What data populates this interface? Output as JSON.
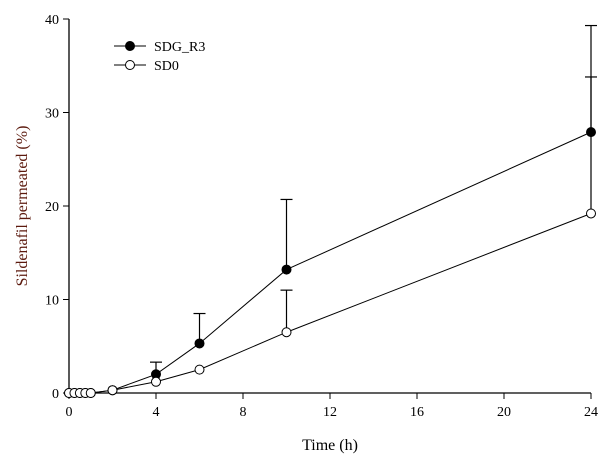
{
  "chart_data": {
    "type": "line",
    "title": "",
    "xlabel": "Time (h)",
    "ylabel": "Sildenafil permeated (%)",
    "xlim": [
      0,
      24
    ],
    "ylim": [
      0,
      40
    ],
    "xticks": [
      0,
      4,
      8,
      12,
      16,
      20,
      24
    ],
    "yticks": [
      0,
      10,
      20,
      30,
      40
    ],
    "grid": false,
    "legend_position": "top-left",
    "colors": {
      "axis": "#000000",
      "ylabel": "#5c1a0e"
    },
    "series": [
      {
        "name": "SDG_R3",
        "marker": "filled-circle",
        "x": [
          0,
          0.25,
          0.5,
          0.75,
          1,
          2,
          4,
          6,
          10,
          24
        ],
        "y": [
          0,
          0,
          0,
          0,
          0,
          0.3,
          2.0,
          5.3,
          13.2,
          27.9
        ],
        "error": [
          0,
          0,
          0,
          0,
          0,
          0,
          1.3,
          3.2,
          7.5,
          11.4
        ]
      },
      {
        "name": "SD0",
        "marker": "open-circle",
        "x": [
          0,
          0.25,
          0.5,
          0.75,
          1,
          2,
          4,
          6,
          10,
          24
        ],
        "y": [
          0,
          0,
          0,
          0,
          0,
          0.3,
          1.2,
          2.5,
          6.5,
          19.2
        ],
        "error": [
          0,
          0,
          0,
          0,
          0,
          0,
          0,
          0,
          4.5,
          14.6
        ]
      }
    ]
  }
}
